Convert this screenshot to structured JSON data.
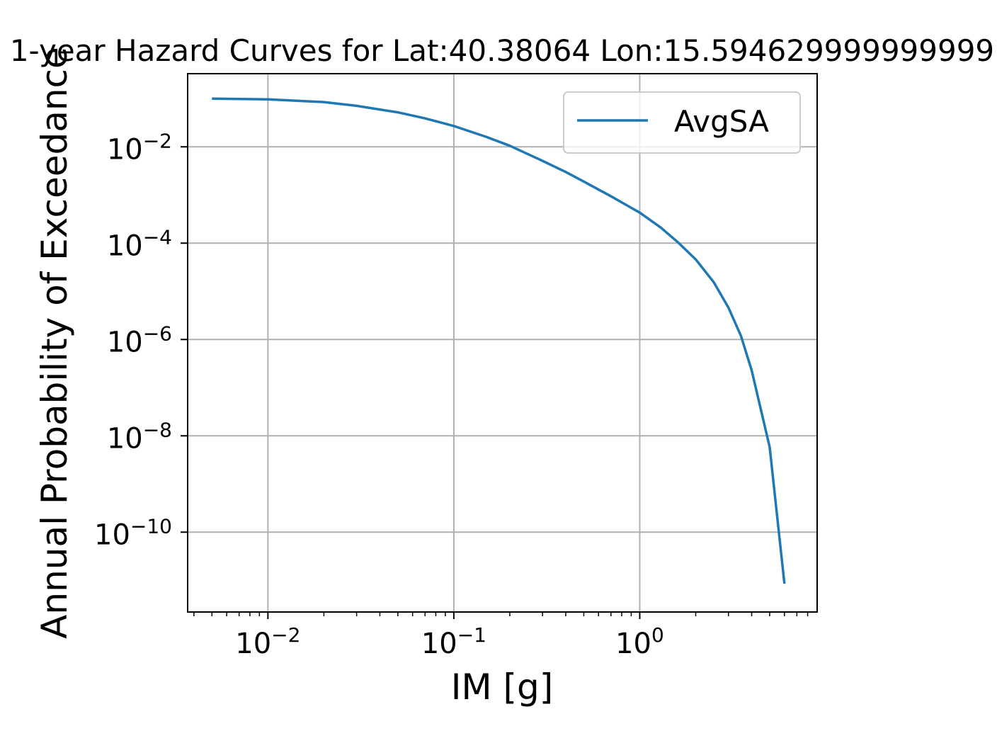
{
  "chart_data": {
    "type": "line",
    "title": "1-year Hazard Curves for Lat:40.38064 Lon:15.594629999999999",
    "xlabel": "IM [g]",
    "ylabel": "Annual Probability of Exceedance",
    "xscale": "log",
    "yscale": "log",
    "xlim": [
      0.0037,
      9.0
    ],
    "ylim": [
      2.2e-12,
      0.33
    ],
    "grid": true,
    "legend_position": "upper right",
    "x_ticks": [
      {
        "value": 0.01,
        "base": "10",
        "exp": "−2"
      },
      {
        "value": 0.1,
        "base": "10",
        "exp": "−1"
      },
      {
        "value": 1,
        "base": "10",
        "exp": "0"
      }
    ],
    "y_ticks": [
      {
        "value": 0.01,
        "base": "10",
        "exp": "−2"
      },
      {
        "value": 0.0001,
        "base": "10",
        "exp": "−4"
      },
      {
        "value": 1e-06,
        "base": "10",
        "exp": "−6"
      },
      {
        "value": 1e-08,
        "base": "10",
        "exp": "−8"
      },
      {
        "value": 1e-10,
        "base": "10",
        "exp": "−10"
      }
    ],
    "series": [
      {
        "name": "AvgSA",
        "color": "#1f77b4",
        "x": [
          0.005,
          0.01,
          0.02,
          0.03,
          0.05,
          0.07,
          0.1,
          0.15,
          0.2,
          0.3,
          0.4,
          0.5,
          0.7,
          1.0,
          1.3,
          1.6,
          2.0,
          2.5,
          3.0,
          3.5,
          4.0,
          5.0,
          6.0
        ],
        "y": [
          0.1,
          0.097,
          0.085,
          0.071,
          0.052,
          0.039,
          0.027,
          0.016,
          0.0105,
          0.0051,
          0.003,
          0.0019,
          0.00094,
          0.00043,
          0.00021,
          0.000105,
          4.6e-05,
          1.55e-05,
          4.6e-06,
          1.2e-06,
          2.3e-07,
          5.8e-09,
          8.5e-12
        ]
      }
    ]
  }
}
